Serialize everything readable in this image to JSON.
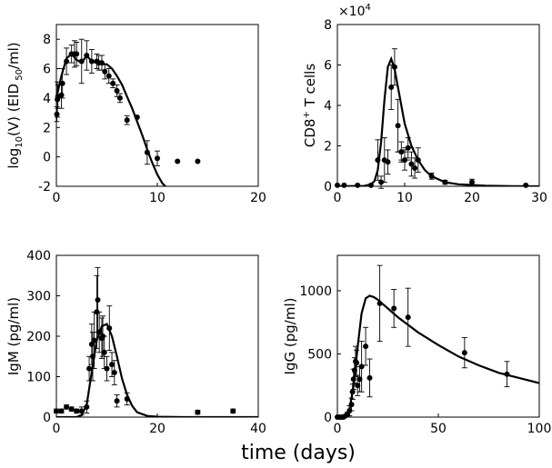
{
  "figure": {
    "xlabel": "time (days)"
  },
  "chart_data": [
    {
      "type": "scatter",
      "ylabel": "log10(V) (EID50/ml)",
      "ylabel_parts": {
        "pre": "log",
        "sub1": "10",
        "mid": "(V) (EID",
        "sub2": " 50",
        "post": "/ml)"
      },
      "xlim": [
        0,
        20
      ],
      "ylim": [
        -2,
        9
      ],
      "xticks": [
        "0",
        "10",
        "20"
      ],
      "xtick_values": [
        0,
        10,
        20
      ],
      "yticks": [
        "-2",
        "0",
        "2",
        "4",
        "6",
        "8"
      ],
      "ytick_values": [
        -2,
        0,
        2,
        4,
        6,
        8
      ],
      "series": [
        {
          "kind": "points",
          "x": [
            0.05,
            0.1,
            0.15,
            0.5,
            0.6,
            1.0,
            1.5,
            1.8,
            2.0,
            2.5,
            3.0,
            3.5,
            4.0,
            4.2,
            4.5,
            4.8,
            5.2,
            5.6,
            6.0,
            6.3,
            7.0,
            8.0,
            9.0,
            10.0,
            12.0,
            14.0
          ],
          "y": [
            2.9,
            3.9,
            4.1,
            4.2,
            5.0,
            6.5,
            7.0,
            7.0,
            7.0,
            6.5,
            6.9,
            6.5,
            6.5,
            6.4,
            6.4,
            5.8,
            5.5,
            5.0,
            4.5,
            4.0,
            2.5,
            2.7,
            0.3,
            -0.1,
            -0.3,
            -0.3
          ],
          "err": [
            0.5,
            1.2,
            0.8,
            0.9,
            1.0,
            0.9,
            0.6,
            0.9,
            0.8,
            1.5,
            1.0,
            0.8,
            0.5,
            0.5,
            0.5,
            0.5,
            0.5,
            0.3,
            0.4,
            0.3,
            0.3,
            0.0,
            0.8,
            0.5,
            0.0,
            0.0
          ]
        },
        {
          "kind": "model",
          "x": [
            0,
            0.5,
            1,
            1.5,
            2,
            2.5,
            3,
            3.5,
            4,
            4.5,
            5,
            5.5,
            6,
            6.5,
            7,
            7.5,
            8,
            8.5,
            9,
            9.5,
            10,
            10.5,
            10.8
          ],
          "y": [
            4.0,
            5.5,
            6.7,
            7.0,
            6.6,
            6.4,
            6.9,
            6.5,
            6.4,
            6.3,
            6.3,
            6.0,
            5.5,
            4.9,
            4.1,
            3.3,
            2.4,
            1.5,
            0.5,
            -0.4,
            -1.2,
            -1.8,
            -2.0
          ]
        }
      ]
    },
    {
      "type": "scatter",
      "ylabel": "CD8+ T cells",
      "ylabel_parts": {
        "pre": "CD8",
        "sup": "+",
        "post": " T cells"
      },
      "exponent_label": {
        "base": "×10",
        "exp": "4"
      },
      "xlim": [
        0,
        30
      ],
      "ylim": [
        0,
        8
      ],
      "xticks": [
        "0",
        "10",
        "20",
        "30"
      ],
      "xtick_values": [
        0,
        10,
        20,
        30
      ],
      "yticks": [
        "0",
        "2",
        "4",
        "6",
        "8"
      ],
      "ytick_values": [
        0,
        2,
        4,
        6,
        8
      ],
      "series": [
        {
          "kind": "points",
          "x": [
            0,
            1,
            3,
            5,
            6,
            6.5,
            7,
            7.5,
            8,
            8.5,
            9,
            9.5,
            10,
            10.5,
            11,
            11.5,
            12,
            14,
            16,
            20,
            28
          ],
          "y": [
            0.05,
            0.05,
            0.05,
            0.05,
            1.3,
            0.2,
            1.3,
            1.2,
            4.9,
            5.9,
            3.0,
            1.7,
            1.3,
            1.9,
            1.1,
            0.9,
            1.3,
            0.5,
            0.2,
            0.2,
            0.05
          ],
          "err": [
            0,
            0,
            0,
            0,
            1.0,
            0.3,
            1.1,
            0.6,
            1.1,
            0.9,
            1.3,
            0.5,
            0.5,
            0.5,
            0.6,
            0.5,
            0.6,
            0.15,
            0.1,
            0.15,
            0
          ],
          "xerr": [
            0,
            0,
            0,
            0,
            0,
            0,
            0,
            0,
            0,
            0,
            0,
            0.9,
            0.9,
            0.9,
            0,
            0,
            0,
            0,
            0,
            0,
            0
          ]
        },
        {
          "kind": "model",
          "x": [
            0,
            4,
            5,
            5.5,
            6,
            6.5,
            7,
            7.5,
            8,
            8.5,
            9,
            10,
            11,
            12,
            13,
            14,
            16,
            18,
            22,
            26,
            30
          ],
          "y": [
            0,
            0.02,
            0.1,
            0.25,
            0.8,
            2.2,
            4.3,
            5.9,
            6.3,
            5.8,
            4.9,
            3.1,
            2.0,
            1.3,
            0.8,
            0.5,
            0.2,
            0.1,
            0.03,
            0.01,
            0
          ]
        }
      ]
    },
    {
      "type": "scatter",
      "ylabel": "IgM (pg/ml)",
      "xlim": [
        0,
        40
      ],
      "ylim": [
        0,
        400
      ],
      "xticks": [
        "0",
        "20",
        "40"
      ],
      "xtick_values": [
        0,
        20,
        40
      ],
      "yticks": [
        "0",
        "100",
        "200",
        "300",
        "400"
      ],
      "ytick_values": [
        0,
        100,
        200,
        300,
        400
      ],
      "series": [
        {
          "kind": "points",
          "x": [
            0,
            1,
            2,
            3,
            4,
            5,
            6,
            6.5,
            7,
            7.2,
            7.5,
            8,
            8.2,
            8.5,
            9,
            9.2,
            9.5,
            10,
            10.5,
            11,
            11.5,
            12,
            14,
            28,
            35
          ],
          "y": [
            15,
            15,
            25,
            20,
            15,
            15,
            25,
            120,
            180,
            150,
            190,
            260,
            290,
            210,
            195,
            200,
            160,
            120,
            220,
            130,
            110,
            40,
            45,
            12,
            15
          ],
          "err": [
            5,
            5,
            5,
            5,
            5,
            10,
            15,
            30,
            50,
            60,
            70,
            90,
            80,
            50,
            50,
            50,
            40,
            30,
            55,
            30,
            30,
            15,
            15,
            5,
            5
          ]
        },
        {
          "kind": "model",
          "x": [
            0,
            4,
            5,
            6,
            7,
            8,
            9,
            10,
            11,
            12,
            13,
            14,
            15,
            16,
            18,
            20,
            25,
            30,
            35,
            40
          ],
          "y": [
            0,
            0,
            5,
            30,
            110,
            190,
            225,
            230,
            200,
            150,
            95,
            55,
            28,
            12,
            3,
            1,
            0,
            0,
            0,
            0
          ]
        }
      ]
    },
    {
      "type": "scatter",
      "ylabel": "IgG (pg/ml)",
      "xlim": [
        0,
        100
      ],
      "ylim": [
        0,
        1280
      ],
      "xticks": [
        "0",
        "50",
        "100"
      ],
      "xtick_values": [
        0,
        50,
        100
      ],
      "yticks": [
        "0",
        "500",
        "1000"
      ],
      "ytick_values": [
        0,
        500,
        1000
      ],
      "series": [
        {
          "kind": "points",
          "x": [
            0,
            1,
            2,
            3,
            4,
            5,
            6,
            7,
            7.5,
            8,
            8.5,
            9,
            9.5,
            10,
            11,
            12,
            14,
            16,
            21,
            28,
            35,
            63,
            84
          ],
          "y": [
            0,
            0,
            0,
            0,
            10,
            20,
            50,
            100,
            200,
            300,
            370,
            440,
            430,
            250,
            300,
            400,
            560,
            310,
            900,
            860,
            790,
            510,
            340
          ],
          "err": [
            0,
            0,
            0,
            0,
            0,
            20,
            40,
            50,
            60,
            80,
            100,
            120,
            100,
            80,
            100,
            200,
            150,
            150,
            300,
            150,
            230,
            120,
            100
          ]
        },
        {
          "kind": "model",
          "x": [
            0,
            4,
            6,
            8,
            10,
            12,
            14,
            16,
            18,
            20,
            25,
            30,
            40,
            50,
            60,
            70,
            80,
            90,
            100
          ],
          "y": [
            0,
            10,
            60,
            250,
            550,
            820,
            940,
            960,
            950,
            930,
            860,
            790,
            670,
            570,
            480,
            410,
            350,
            310,
            270
          ]
        }
      ]
    }
  ]
}
